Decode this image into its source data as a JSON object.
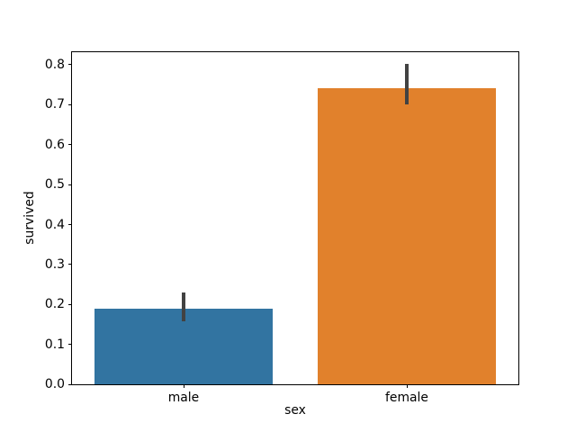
{
  "figure": {
    "background": "#ffffff"
  },
  "chart_data": {
    "type": "bar",
    "xlabel": "sex",
    "ylabel": "survived",
    "categories": [
      "male",
      "female"
    ],
    "values": [
      0.189,
      0.742
    ],
    "error_bars": [
      {
        "low": 0.157,
        "high": 0.23
      },
      {
        "low": 0.701,
        "high": 0.802
      }
    ],
    "bar_colors": [
      "#3274a1",
      "#e1812c"
    ],
    "error_bar_color": "#424242",
    "spine_color": "#000000",
    "ylim": [
      0,
      0.832
    ],
    "xlim": [
      -0.5,
      1.5
    ],
    "bar_width": 0.8,
    "yticks": [
      0.0,
      0.1,
      0.2,
      0.3,
      0.4,
      0.5,
      0.6,
      0.7,
      0.8
    ],
    "ytick_labels": [
      "0.0",
      "0.1",
      "0.2",
      "0.3",
      "0.4",
      "0.5",
      "0.6",
      "0.7",
      "0.8"
    ],
    "grid": false,
    "legend": null
  }
}
